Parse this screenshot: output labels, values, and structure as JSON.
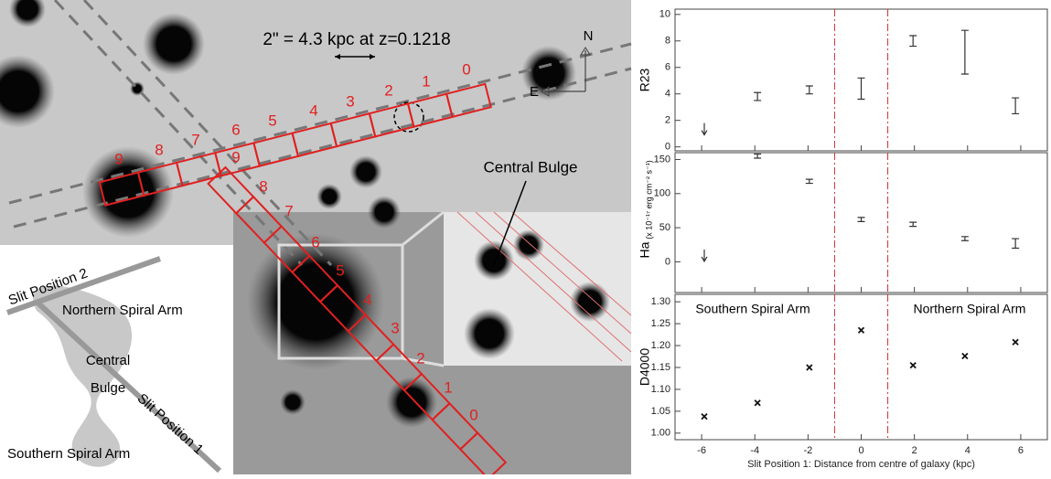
{
  "image": {
    "scale_label": "2\" = 4.3 kpc at z=0.1218",
    "north": "N",
    "east": "E",
    "inset_label": "Central Bulge",
    "slit2_numbers": [
      0,
      1,
      2,
      3,
      4,
      5,
      6,
      7,
      8,
      9
    ],
    "slit1_numbers": [
      0,
      1,
      2,
      3,
      4,
      5,
      6,
      7,
      8,
      9
    ],
    "schematic": {
      "slit2": "Slit Position 2",
      "north_arm": "Northern Spiral Arm",
      "bulge_1": "Central",
      "bulge_2": "Bulge",
      "slit1": "Slit Position 1",
      "south_arm": "Southern Spiral Arm"
    }
  },
  "chart_data": [
    {
      "type": "errorbar",
      "ylabel": "R23",
      "color": "#333333",
      "xlim": [
        -7,
        7
      ],
      "ylim": [
        -0.3,
        10.4
      ],
      "yticks": [
        0,
        2,
        4,
        6,
        8,
        10
      ],
      "x": [
        -5.9,
        -3.9,
        -1.95,
        0,
        1.95,
        3.9,
        5.8
      ],
      "values": [
        1.8,
        3.8,
        4.3,
        4.4,
        8.0,
        7.15,
        3.1
      ],
      "errors": [
        null,
        0.3,
        0.3,
        0.8,
        0.4,
        1.65,
        0.6
      ],
      "upper_limit": [
        true,
        false,
        false,
        false,
        false,
        false,
        false
      ],
      "vlines": [
        -1,
        1
      ],
      "vline_color": "#d03030"
    },
    {
      "type": "errorbar",
      "ylabel": "Ha",
      "ylabel_units": "(x 10⁻¹⁷ erg cm⁻² s⁻¹)",
      "color": "#333333",
      "xlim": [
        -7,
        7
      ],
      "ylim": [
        -45,
        160
      ],
      "yticks": [
        0,
        50,
        100,
        150
      ],
      "x": [
        -5.9,
        -3.9,
        -1.95,
        0,
        1.95,
        3.9,
        5.8
      ],
      "values": [
        18,
        155,
        118,
        62,
        55,
        34,
        27
      ],
      "errors": [
        null,
        3,
        3,
        3,
        3,
        3,
        7
      ],
      "upper_limit": [
        true,
        false,
        false,
        false,
        false,
        false,
        false
      ],
      "vlines": [
        -1,
        1
      ],
      "vline_color": "#d03030"
    },
    {
      "type": "scatter",
      "ylabel": "D4000",
      "xlabel": "Slit Position 1: Distance from centre of galaxy (kpc)",
      "color": "#111111",
      "annotations": [
        "Southern Spiral Arm",
        "Northern Spiral Arm"
      ],
      "xlim": [
        -7,
        7
      ],
      "ylim": [
        0.985,
        1.317
      ],
      "xticks": [
        -6,
        -4,
        -2,
        0,
        2,
        4,
        6
      ],
      "yticks": [
        {
          "value": 1.0,
          "label": "1.00"
        },
        {
          "value": 1.05,
          "label": "1.05"
        },
        {
          "value": 1.1,
          "label": "1.10"
        },
        {
          "value": 1.15,
          "label": "1.15"
        },
        {
          "value": 1.2,
          "label": "1.20"
        },
        {
          "value": 1.25,
          "label": "1.25"
        },
        {
          "value": 1.3,
          "label": "1.30"
        }
      ],
      "x": [
        -5.9,
        -3.9,
        -1.95,
        0,
        1.95,
        3.9,
        5.8
      ],
      "values": [
        1.038,
        1.069,
        1.15,
        1.235,
        1.155,
        1.176,
        1.208
      ],
      "vlines": [
        -1,
        1
      ],
      "vline_color": "#d03030"
    }
  ]
}
